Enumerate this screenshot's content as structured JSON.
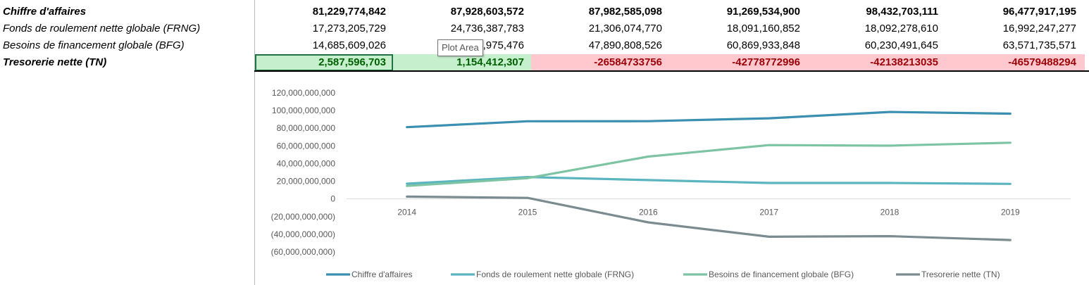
{
  "table": {
    "rows": [
      {
        "label": "Chiffre d'affaires",
        "bold": true,
        "values": [
          "81,229,774,842",
          "87,928,603,572",
          "87,982,585,098",
          "91,269,534,900",
          "98,432,703,111",
          "96,477,917,195"
        ]
      },
      {
        "label": "Fonds de roulement nette globale (FRNG)",
        "bold": false,
        "values": [
          "17,273,205,729",
          "24,736,387,783",
          "21,306,074,770",
          "18,091,160,852",
          "18,092,278,610",
          "16,992,247,277"
        ]
      },
      {
        "label": "Besoins de financement globale (BFG)",
        "bold": false,
        "values": [
          "14,685,609,026",
          "23,581,975,476",
          "47,890,808,526",
          "60,869,933,848",
          "60,230,491,645",
          "63,571,735,571"
        ]
      },
      {
        "label": "Tresorerie nette (TN)",
        "bold": true,
        "values": [
          "2,587,596,703",
          "1,154,412,307",
          "-26584733756",
          "-42778772996",
          "-42138213035",
          "-46579488294"
        ]
      }
    ]
  },
  "tooltip": "Plot Area",
  "colors": {
    "ca": "#3b8fb0",
    "frng": "#5bb5c0",
    "bfg": "#7cc4a4",
    "tn": "#7a8c90",
    "grid": "#d9d9d9"
  },
  "chart_data": {
    "type": "line",
    "x": [
      "2014",
      "2015",
      "2016",
      "2017",
      "2018",
      "2019"
    ],
    "ylim": [
      -60000000000,
      120000000000
    ],
    "yticks": [
      120000000000,
      100000000000,
      80000000000,
      60000000000,
      40000000000,
      20000000000,
      0,
      -20000000000,
      -40000000000,
      -60000000000
    ],
    "ytick_labels": [
      "120,000,000,000",
      "100,000,000,000",
      "80,000,000,000",
      "60,000,000,000",
      "40,000,000,000",
      "20,000,000,000",
      "0",
      "(20,000,000,000)",
      "(40,000,000,000)",
      "(60,000,000,000)"
    ],
    "legend_position": "bottom",
    "series": [
      {
        "name": "Chiffre d'affaires",
        "color": "#3b8fb0",
        "values": [
          81229774842,
          87928603572,
          87982585098,
          91269534900,
          98432703111,
          96477917195
        ]
      },
      {
        "name": "Fonds de roulement nette globale (FRNG)",
        "color": "#5bb5c0",
        "values": [
          17273205729,
          24736387783,
          21306074770,
          18091160852,
          18092278610,
          16992247277
        ]
      },
      {
        "name": "Besoins de financement globale (BFG)",
        "color": "#7cc4a4",
        "values": [
          14685609026,
          23581975476,
          47890808526,
          60869933848,
          60230491645,
          63571735571
        ]
      },
      {
        "name": "Tresorerie nette (TN)",
        "color": "#7a8c90",
        "values": [
          2587596703,
          1154412307,
          -26584733756,
          -42778772996,
          -42138213035,
          -46579488294
        ]
      }
    ]
  }
}
